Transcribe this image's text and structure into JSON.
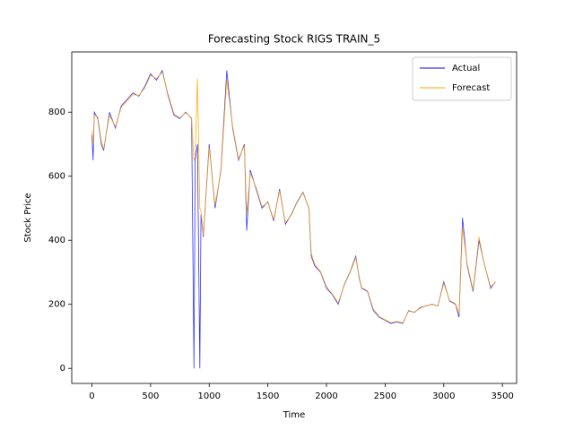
{
  "chart_data": {
    "type": "line",
    "title": "Forecasting Stock RIGS TRAIN_5",
    "xlabel": "Time",
    "ylabel": "Stock Price",
    "x": [
      0,
      10,
      20,
      50,
      80,
      100,
      150,
      200,
      250,
      300,
      350,
      400,
      450,
      500,
      550,
      600,
      650,
      700,
      750,
      800,
      850,
      870,
      880,
      900,
      920,
      930,
      950,
      1000,
      1050,
      1100,
      1150,
      1200,
      1250,
      1300,
      1320,
      1350,
      1400,
      1450,
      1500,
      1550,
      1600,
      1650,
      1700,
      1750,
      1800,
      1850,
      1870,
      1900,
      1950,
      2000,
      2050,
      2100,
      2150,
      2200,
      2250,
      2280,
      2300,
      2350,
      2400,
      2450,
      2500,
      2550,
      2600,
      2650,
      2700,
      2750,
      2800,
      2850,
      2900,
      2950,
      3000,
      3050,
      3100,
      3130,
      3160,
      3200,
      3250,
      3300,
      3350,
      3400,
      3440
    ],
    "series": [
      {
        "name": "Actual",
        "color": "#0000ff",
        "values": [
          730,
          650,
          800,
          780,
          700,
          680,
          800,
          750,
          820,
          840,
          860,
          850,
          880,
          920,
          900,
          930,
          850,
          790,
          780,
          800,
          780,
          0,
          650,
          700,
          0,
          480,
          410,
          700,
          500,
          620,
          930,
          750,
          650,
          700,
          430,
          620,
          560,
          500,
          520,
          460,
          560,
          450,
          480,
          520,
          550,
          500,
          350,
          320,
          300,
          250,
          230,
          200,
          260,
          300,
          350,
          280,
          250,
          240,
          180,
          160,
          150,
          140,
          145,
          140,
          180,
          175,
          190,
          195,
          200,
          195,
          270,
          210,
          200,
          160,
          470,
          320,
          240,
          400,
          320,
          250,
          270
        ]
      },
      {
        "name": "Forecast",
        "color": "#ffa500",
        "values": [
          740,
          700,
          790,
          785,
          710,
          685,
          790,
          755,
          815,
          835,
          855,
          852,
          875,
          915,
          905,
          925,
          855,
          795,
          782,
          798,
          782,
          650,
          660,
          905,
          500,
          490,
          415,
          690,
          510,
          615,
          900,
          755,
          655,
          695,
          480,
          610,
          565,
          505,
          518,
          465,
          555,
          455,
          478,
          518,
          548,
          502,
          360,
          325,
          302,
          255,
          232,
          205,
          258,
          298,
          345,
          285,
          252,
          242,
          185,
          162,
          152,
          143,
          147,
          142,
          178,
          176,
          188,
          196,
          199,
          196,
          265,
          212,
          202,
          170,
          440,
          325,
          245,
          410,
          318,
          255,
          268
        ]
      }
    ],
    "xlim": [
      -172,
      3621
    ],
    "ylim": [
      -47,
      988
    ],
    "xticks": [
      0,
      500,
      1000,
      1500,
      2000,
      2500,
      3000,
      3500
    ],
    "yticks": [
      0,
      200,
      400,
      600,
      800
    ],
    "legend": "upper right"
  }
}
